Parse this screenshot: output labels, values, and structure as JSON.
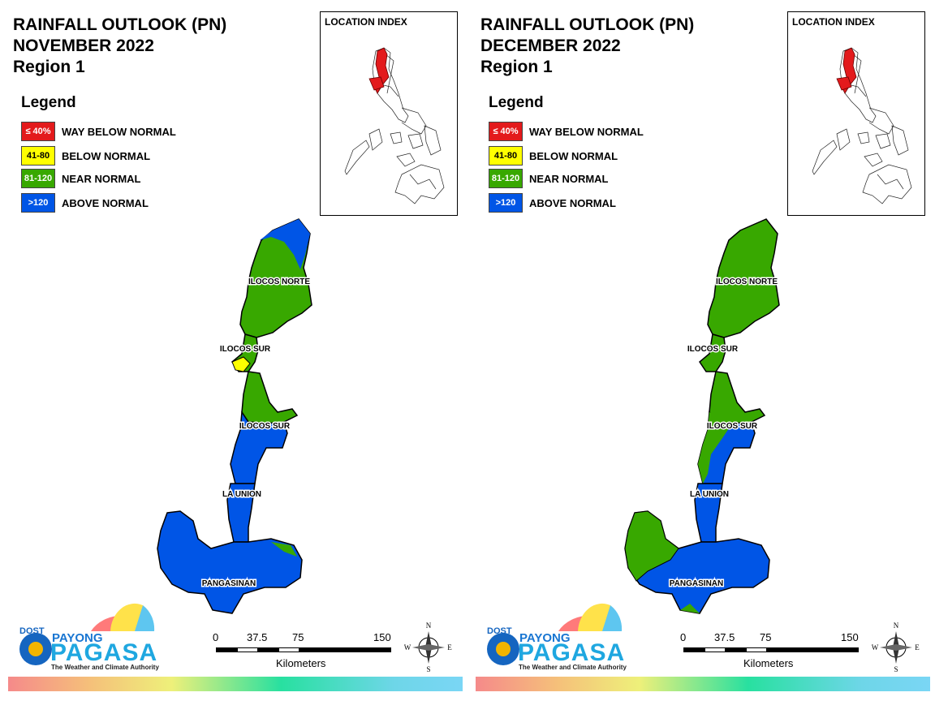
{
  "panels": [
    {
      "title_line1": "RAINFALL OUTLOOK (PN)",
      "title_line2": "NOVEMBER 2022",
      "title_line3": "Region 1"
    },
    {
      "title_line1": "RAINFALL OUTLOOK (PN)",
      "title_line2": "DECEMBER 2022",
      "title_line3": "Region 1"
    }
  ],
  "legend": {
    "title": "Legend",
    "items": [
      {
        "range": "≤ 40%",
        "label": "WAY BELOW NORMAL",
        "color": "#e31a1c"
      },
      {
        "range": "41-80",
        "label": "BELOW NORMAL",
        "color": "#ffff00"
      },
      {
        "range": "81-120",
        "label": "NEAR NORMAL",
        "color": "#38a800"
      },
      {
        "range": ">120",
        "label": "ABOVE NORMAL",
        "color": "#0055e6"
      }
    ]
  },
  "inset": {
    "title": "LOCATION INDEX",
    "highlight_color": "#e31a1c"
  },
  "provinces": {
    "ilocos_norte": "ILOCOS NORTE",
    "ilocos_sur_1": "ILOCOS SUR",
    "ilocos_sur_2": "ILOCOS SUR",
    "la_union": "LA UNION",
    "pangasinan": "PANGASINAN"
  },
  "scale_bar": {
    "ticks": [
      "0",
      "37.5",
      "75",
      "150"
    ],
    "unit": "Kilometers"
  },
  "compass": {
    "n": "N",
    "s": "S",
    "e": "E",
    "w": "W"
  },
  "logo": {
    "dost": "DOST",
    "payong": "PAYONG",
    "pagasa": "PAGASA",
    "tagline": "The Weather and Climate Authority"
  }
}
